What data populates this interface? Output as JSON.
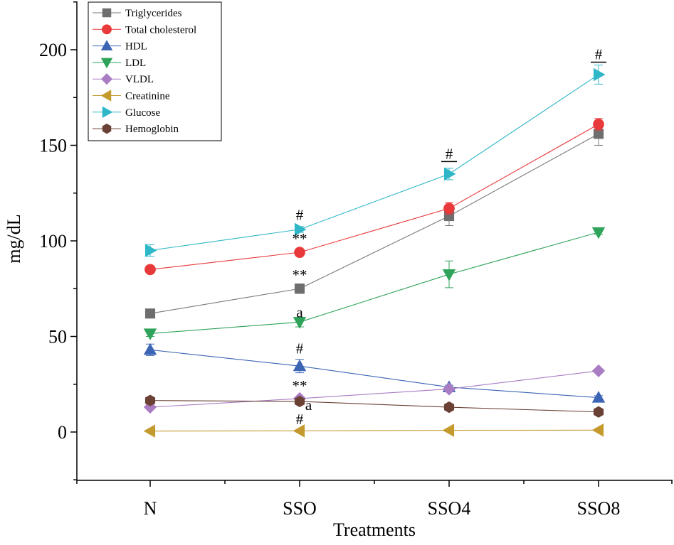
{
  "chart_data": {
    "type": "line",
    "title": "",
    "xlabel": "Treatments",
    "ylabel": "mg/dL",
    "categories": [
      "N",
      "SSO",
      "SSO4",
      "SSO8"
    ],
    "ylim": [
      -25,
      225
    ],
    "yticks": [
      0,
      50,
      100,
      150,
      200
    ],
    "ytick_labels": [
      "0",
      "50",
      "100",
      "150",
      "200"
    ],
    "legend_position": "top-left",
    "series": [
      {
        "name": "Triglycerides",
        "color": "#6e6e6e",
        "line_color": "#7a7a7a",
        "marker": "square",
        "values": [
          62,
          75,
          113,
          156
        ],
        "errors": [
          1.5,
          2.5,
          5,
          6
        ]
      },
      {
        "name": "Total cholesterol",
        "color": "#e8393b",
        "line_color": "#e8393b",
        "marker": "circle",
        "values": [
          85,
          94,
          117,
          161
        ],
        "errors": [
          1,
          1.5,
          3,
          3
        ]
      },
      {
        "name": "HDL",
        "color": "#3c64b4",
        "line_color": "#3c64b4",
        "marker": "triangle-up",
        "values": [
          43,
          34.5,
          23.5,
          18
        ],
        "errors": [
          3,
          3.5,
          1,
          1
        ]
      },
      {
        "name": "LDL",
        "color": "#2fa35a",
        "line_color": "#2fa35a",
        "marker": "triangle-down",
        "values": [
          51.5,
          57.5,
          82.5,
          104.5
        ],
        "errors": [
          1.5,
          2.5,
          7,
          1
        ]
      },
      {
        "name": "VLDL",
        "color": "#a97cc4",
        "line_color": "#a97cc4",
        "marker": "diamond",
        "values": [
          13,
          17.5,
          22.5,
          32
        ],
        "errors": [
          0.5,
          0.5,
          1,
          1
        ]
      },
      {
        "name": "Creatinine",
        "color": "#c49a2e",
        "line_color": "#c49a2e",
        "marker": "triangle-left",
        "values": [
          0.5,
          0.6,
          0.9,
          1.0
        ],
        "errors": [
          0,
          0,
          0,
          0
        ]
      },
      {
        "name": "Glucose",
        "color": "#2fb7c7",
        "line_color": "#2fb7c7",
        "marker": "triangle-right",
        "values": [
          95,
          106,
          135,
          187
        ],
        "errors": [
          3,
          1.5,
          3,
          5
        ]
      },
      {
        "name": "Hemoglobin",
        "color": "#6b4136",
        "line_color": "#6b4136",
        "marker": "hexagon",
        "values": [
          16.5,
          16,
          13,
          10.5
        ],
        "errors": [
          0.5,
          0.5,
          0.5,
          0.5
        ]
      }
    ],
    "annotations": [
      {
        "text": "#",
        "category": "SSO",
        "y": 111
      },
      {
        "text": "**",
        "category": "SSO",
        "y": 98.5
      },
      {
        "text": "**",
        "category": "SSO",
        "y": 79.5
      },
      {
        "text": "a",
        "category": "SSO",
        "y": 60
      },
      {
        "text": "#",
        "category": "SSO",
        "y": 41
      },
      {
        "text": "**",
        "category": "SSO",
        "y": 21.5
      },
      {
        "text": "a",
        "category": "SSO",
        "y": 11.5,
        "dx": 0.06
      },
      {
        "text": "#",
        "category": "SSO",
        "y": 4
      },
      {
        "text": "#",
        "category": "SSO4",
        "y": 143,
        "bracket": true
      },
      {
        "text": "#",
        "category": "SSO8",
        "y": 195,
        "bracket": true
      }
    ]
  }
}
